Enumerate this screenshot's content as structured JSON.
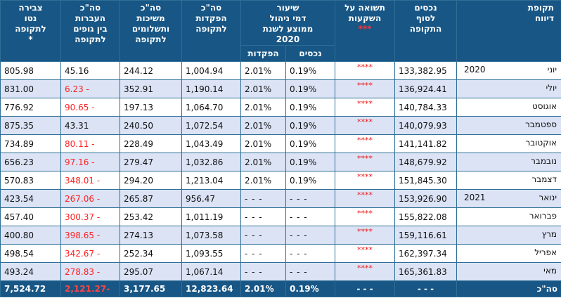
{
  "headers": {
    "period": [
      "תקופת",
      "דיווח"
    ],
    "assets": [
      "נכסים",
      "לסוף",
      "התקופה"
    ],
    "return": [
      "תשואה על",
      "השקעות"
    ],
    "return_mark": "***",
    "fee_rate": [
      "שיעור",
      "דמי ניהול",
      "ממוצע לשנת",
      "2020"
    ],
    "fee_assets": "נכסים",
    "fee_deposits": "הפקדות",
    "deposits": [
      "סה\"כ",
      "הפקדות",
      "לתקופה"
    ],
    "withdrawals": [
      "סה\"כ",
      "משיכות",
      "ותשלומים",
      "לתקופה"
    ],
    "transfers": [
      "סה\"כ",
      "העברות",
      "בין גופים",
      "לתקופה"
    ],
    "net": [
      "צבירה",
      "נטו",
      "לתקופה"
    ],
    "net_mark": "*"
  },
  "rows": [
    {
      "year": "2020",
      "month": "יוני",
      "assets": "133,382.95",
      "return": "****",
      "fee_assets": "0.19%",
      "fee_deposits": "2.01%",
      "deposits": "1,004.94",
      "withdrawals": "244.12",
      "transfers": "45.16",
      "transfers_neg": false,
      "net": "805.98"
    },
    {
      "year": "",
      "month": "יולי",
      "assets": "136,924.41",
      "return": "****",
      "fee_assets": "0.19%",
      "fee_deposits": "2.01%",
      "deposits": "1,190.14",
      "withdrawals": "352.91",
      "transfers": "- 6.23",
      "transfers_neg": true,
      "net": "831.00"
    },
    {
      "year": "",
      "month": "אוגוסט",
      "assets": "140,784.33",
      "return": "****",
      "fee_assets": "0.19%",
      "fee_deposits": "2.01%",
      "deposits": "1,064.70",
      "withdrawals": "197.13",
      "transfers": "- 90.65",
      "transfers_neg": true,
      "net": "776.92"
    },
    {
      "year": "",
      "month": "ספטמבר",
      "assets": "140,079.93",
      "return": "****",
      "fee_assets": "0.19%",
      "fee_deposits": "2.01%",
      "deposits": "1,072.54",
      "withdrawals": "240.50",
      "transfers": "43.31",
      "transfers_neg": false,
      "net": "875.35"
    },
    {
      "year": "",
      "month": "אוקטובר",
      "assets": "141,141.82",
      "return": "****",
      "fee_assets": "0.19%",
      "fee_deposits": "2.01%",
      "deposits": "1,043.49",
      "withdrawals": "228.49",
      "transfers": "- 80.11",
      "transfers_neg": true,
      "net": "734.89"
    },
    {
      "year": "",
      "month": "נובמבר",
      "assets": "148,679.92",
      "return": "****",
      "fee_assets": "0.19%",
      "fee_deposits": "2.01%",
      "deposits": "1,032.86",
      "withdrawals": "279.47",
      "transfers": "- 97.16",
      "transfers_neg": true,
      "net": "656.23"
    },
    {
      "year": "",
      "month": "דצמבר",
      "assets": "151,845.30",
      "return": "****",
      "fee_assets": "0.19%",
      "fee_deposits": "2.01%",
      "deposits": "1,213.04",
      "withdrawals": "294.20",
      "transfers": "- 348.01",
      "transfers_neg": true,
      "net": "570.83"
    },
    {
      "year": "2021",
      "month": "ינואר",
      "assets": "153,926.90",
      "return": "****",
      "fee_assets": "- - -",
      "fee_deposits": "- - -",
      "deposits": "956.47",
      "withdrawals": "265.87",
      "transfers": "- 267.06",
      "transfers_neg": true,
      "net": "423.54"
    },
    {
      "year": "",
      "month": "פברואר",
      "assets": "155,822.08",
      "return": "****",
      "fee_assets": "- - -",
      "fee_deposits": "- - -",
      "deposits": "1,011.19",
      "withdrawals": "253.42",
      "transfers": "- 300.37",
      "transfers_neg": true,
      "net": "457.40"
    },
    {
      "year": "",
      "month": "מרץ",
      "assets": "159,116.61",
      "return": "****",
      "fee_assets": "- - -",
      "fee_deposits": "- - -",
      "deposits": "1,073.58",
      "withdrawals": "274.13",
      "transfers": "- 398.65",
      "transfers_neg": true,
      "net": "400.80"
    },
    {
      "year": "",
      "month": "אפריל",
      "assets": "162,397.34",
      "return": "****",
      "fee_assets": "- - -",
      "fee_deposits": "- - -",
      "deposits": "1,093.55",
      "withdrawals": "252.34",
      "transfers": "- 342.67",
      "transfers_neg": true,
      "net": "498.54"
    },
    {
      "year": "",
      "month": "מאי",
      "assets": "165,361.83",
      "return": "****",
      "fee_assets": "- - -",
      "fee_deposits": "- - -",
      "deposits": "1,067.14",
      "withdrawals": "295.07",
      "transfers": "- 278.83",
      "transfers_neg": true,
      "net": "493.24"
    }
  ],
  "totals": {
    "label": "סה\"כ",
    "assets": "- - -",
    "return": "- - -",
    "fee_assets": "0.19%",
    "fee_deposits": "2.01%",
    "deposits": "12,823.64",
    "withdrawals": "3,177.65",
    "transfers": "-2,121.27",
    "net": "7,524.72"
  },
  "colors": {
    "header_bg": "#175685",
    "row_alt_bg": "#dbe3f5",
    "negative": "#ff2222",
    "stars": "#ee1111"
  }
}
